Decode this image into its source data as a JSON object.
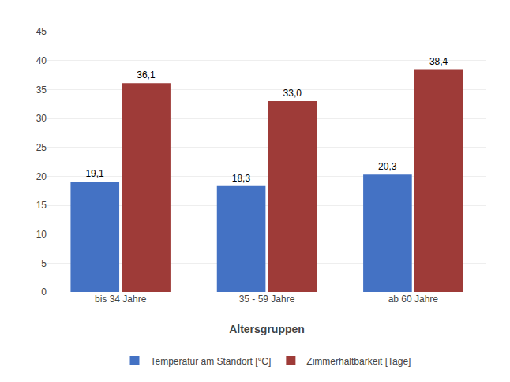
{
  "chart_data": {
    "type": "bar",
    "categories": [
      "bis 34 Jahre",
      "35 - 59 Jahre",
      "ab 60 Jahre"
    ],
    "series": [
      {
        "name": "Temperatur am Standort [°C]",
        "color": "#4472C4",
        "values": [
          19.1,
          18.3,
          20.3
        ],
        "value_labels": [
          "19,1",
          "18,3",
          "20,3"
        ]
      },
      {
        "name": "Zimmerhaltbarkeit [Tage]",
        "color": "#9E3B38",
        "values": [
          36.1,
          33.0,
          38.4
        ],
        "value_labels": [
          "36,1",
          "33,0",
          "38,4"
        ]
      }
    ],
    "xlabel": "Altersgruppen",
    "ylim": [
      0,
      45
    ],
    "yticks": [
      0,
      5,
      10,
      15,
      20,
      25,
      30,
      35,
      40,
      45
    ],
    "grid": true,
    "legend": "bottom",
    "data_labels": true
  }
}
